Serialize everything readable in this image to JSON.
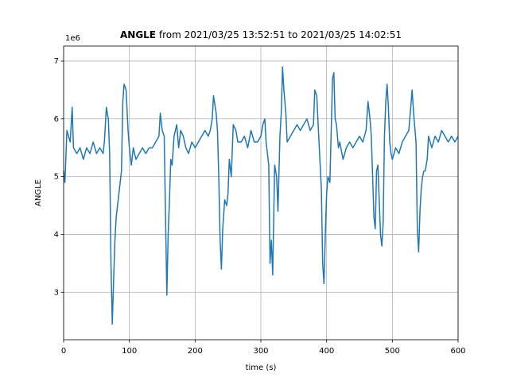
{
  "chart_data": {
    "type": "line",
    "title": {
      "variable": "ANGLE",
      "range": "from 2021/03/25 13:52:51 to 2021/03/25 14:02:51"
    },
    "x_label": "time (s)",
    "y_label": "ANGLE",
    "y_offset_label": "1e6",
    "x": [
      0,
      2,
      5,
      10,
      13,
      15,
      20,
      25,
      30,
      35,
      40,
      45,
      50,
      55,
      60,
      62,
      65,
      68,
      70,
      72,
      74,
      76,
      78,
      80,
      83,
      86,
      88,
      90,
      92,
      95,
      98,
      100,
      103,
      106,
      110,
      115,
      120,
      125,
      130,
      135,
      140,
      145,
      147,
      150,
      153,
      155,
      157,
      159,
      161,
      163,
      165,
      168,
      172,
      175,
      178,
      182,
      186,
      190,
      195,
      200,
      205,
      210,
      215,
      220,
      223,
      226,
      228,
      232,
      234,
      236,
      238,
      240,
      242,
      245,
      248,
      250,
      252,
      255,
      258,
      262,
      265,
      270,
      275,
      280,
      285,
      290,
      295,
      300,
      303,
      306,
      308,
      312,
      314,
      316,
      318,
      321,
      324,
      326,
      329,
      331,
      333,
      335,
      338,
      340,
      345,
      350,
      355,
      360,
      365,
      370,
      375,
      380,
      382,
      385,
      388,
      392,
      394,
      396,
      398,
      400,
      402,
      405,
      407,
      409,
      411,
      413,
      415,
      418,
      420,
      425,
      430,
      435,
      440,
      445,
      450,
      455,
      460,
      463,
      466,
      468,
      470,
      472,
      474,
      476,
      478,
      480,
      482,
      484,
      486,
      488,
      490,
      492,
      494,
      496,
      498,
      500,
      505,
      510,
      515,
      520,
      525,
      528,
      530,
      533,
      536,
      538,
      540,
      542,
      544,
      546,
      548,
      550,
      553,
      555,
      560,
      565,
      570,
      575,
      580,
      585,
      590,
      595,
      600
    ],
    "series": [
      {
        "color": "#1f77b4",
        "values": [
          5.1,
          4.9,
          5.8,
          5.6,
          6.2,
          5.5,
          5.4,
          5.5,
          5.3,
          5.5,
          5.4,
          5.6,
          5.4,
          5.5,
          5.4,
          5.6,
          6.2,
          6.0,
          5.4,
          3.5,
          2.45,
          3.2,
          3.9,
          4.3,
          4.6,
          4.9,
          5.1,
          6.3,
          6.6,
          6.5,
          5.8,
          5.5,
          5.2,
          5.5,
          5.3,
          5.4,
          5.5,
          5.4,
          5.5,
          5.5,
          5.6,
          5.7,
          6.1,
          5.8,
          5.7,
          4.3,
          2.95,
          4.0,
          4.6,
          5.3,
          5.2,
          5.7,
          5.9,
          5.5,
          5.8,
          5.7,
          5.5,
          5.4,
          5.6,
          5.5,
          5.6,
          5.7,
          5.8,
          5.7,
          5.8,
          6.0,
          6.4,
          6.1,
          5.8,
          5.0,
          3.9,
          3.4,
          4.1,
          4.6,
          4.5,
          4.7,
          5.3,
          5.0,
          5.9,
          5.8,
          5.6,
          5.6,
          5.7,
          5.5,
          5.8,
          5.6,
          5.6,
          5.7,
          5.9,
          6.0,
          5.6,
          5.2,
          3.5,
          3.9,
          3.3,
          5.2,
          5.0,
          4.4,
          5.7,
          6.1,
          6.9,
          6.5,
          6.1,
          5.6,
          5.7,
          5.8,
          5.9,
          5.8,
          5.9,
          6.0,
          5.8,
          5.9,
          6.5,
          6.4,
          5.7,
          4.8,
          3.5,
          3.15,
          4.0,
          4.7,
          5.0,
          4.9,
          5.8,
          6.7,
          6.8,
          6.0,
          5.9,
          5.5,
          5.6,
          5.3,
          5.5,
          5.6,
          5.5,
          5.6,
          5.7,
          5.6,
          5.8,
          6.3,
          6.0,
          5.7,
          5.0,
          4.3,
          4.1,
          5.1,
          5.2,
          4.6,
          4.0,
          3.8,
          4.2,
          5.7,
          6.3,
          6.6,
          6.2,
          5.6,
          5.4,
          5.3,
          5.5,
          5.4,
          5.6,
          5.7,
          5.8,
          6.2,
          6.5,
          6.0,
          5.6,
          4.1,
          3.7,
          4.4,
          4.8,
          5.0,
          5.1,
          5.1,
          5.3,
          5.7,
          5.5,
          5.7,
          5.6,
          5.8,
          5.7,
          5.6,
          5.7,
          5.6,
          5.7
        ]
      }
    ],
    "xlim": [
      0,
      600
    ],
    "xticks": [
      0,
      100,
      200,
      300,
      400,
      500,
      600
    ],
    "ylim": [
      2.18,
      7.26
    ],
    "yticks": [
      3,
      4,
      5,
      6,
      7
    ],
    "grid": true
  }
}
